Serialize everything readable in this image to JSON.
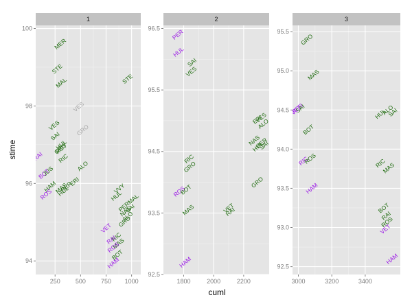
{
  "chart_data": {
    "type": "scatter",
    "marker": "text-labels",
    "xlabel": "cuml",
    "ylabel": "stime",
    "colors": {
      "green": "#1e6b0e",
      "purple": "#9b19e6",
      "grey": "#a6a6a6",
      "panel_bg": "#e5e5e5",
      "grid": "#ffffff",
      "strip_bg": "#c2c2c2",
      "tick_text": "#7f7f7f"
    },
    "panels": [
      {
        "strip": "1",
        "xlim": [
          60,
          1090
        ],
        "ylim": [
          93.65,
          100.08
        ],
        "xticks": [
          250,
          500,
          750,
          1000
        ],
        "xtick_labels": [
          "250",
          "500",
          "750",
          "1000"
        ],
        "yticks": [
          94,
          96,
          98,
          100
        ],
        "ytick_labels": [
          "94",
          "96",
          "98",
          "100"
        ],
        "points": [
          {
            "label": "MER",
            "x": 300,
            "y": 99.6,
            "color": "green"
          },
          {
            "label": "STE",
            "x": 270,
            "y": 98.96,
            "color": "green"
          },
          {
            "label": "MAL",
            "x": 310,
            "y": 98.6,
            "color": "green"
          },
          {
            "label": "STE",
            "x": 960,
            "y": 98.7,
            "color": "green"
          },
          {
            "label": "VES",
            "x": 480,
            "y": 97.98,
            "color": "grey"
          },
          {
            "label": "VES",
            "x": 240,
            "y": 97.5,
            "color": "green"
          },
          {
            "label": "GRO",
            "x": 520,
            "y": 97.38,
            "color": "grey"
          },
          {
            "label": "SAI",
            "x": 250,
            "y": 97.22,
            "color": "green"
          },
          {
            "label": "HUL",
            "x": 310,
            "y": 97.0,
            "color": "green"
          },
          {
            "label": "GRO",
            "x": 300,
            "y": 96.9,
            "color": "green"
          },
          {
            "label": "ROY",
            "x": 310,
            "y": 96.9,
            "color": "green"
          },
          {
            "label": "RAI",
            "x": 80,
            "y": 96.7,
            "color": "purple"
          },
          {
            "label": "RIC",
            "x": 330,
            "y": 96.65,
            "color": "green"
          },
          {
            "label": "ALO",
            "x": 520,
            "y": 96.45,
            "color": "green"
          },
          {
            "label": "BOT",
            "x": 140,
            "y": 96.25,
            "color": "purple"
          },
          {
            "label": "JUS",
            "x": 180,
            "y": 96.32,
            "color": "green"
          },
          {
            "label": "HAM",
            "x": 200,
            "y": 95.92,
            "color": "green"
          },
          {
            "label": "ROS",
            "x": 160,
            "y": 95.72,
            "color": "purple"
          },
          {
            "label": "MAS",
            "x": 310,
            "y": 95.88,
            "color": "green"
          },
          {
            "label": "HUL",
            "x": 330,
            "y": 95.8,
            "color": "green"
          },
          {
            "label": "PER",
            "x": 360,
            "y": 95.92,
            "color": "green"
          },
          {
            "label": "ERI",
            "x": 440,
            "y": 96.05,
            "color": "green"
          },
          {
            "label": "VVY",
            "x": 880,
            "y": 95.87,
            "color": "green"
          },
          {
            "label": "HUL",
            "x": 850,
            "y": 95.68,
            "color": "green"
          },
          {
            "label": "PERMAL",
            "x": 970,
            "y": 95.5,
            "color": "green"
          },
          {
            "label": "SAI",
            "x": 985,
            "y": 95.36,
            "color": "green"
          },
          {
            "label": "NAS",
            "x": 940,
            "y": 95.28,
            "color": "green"
          },
          {
            "label": "ALO",
            "x": 960,
            "y": 95.15,
            "color": "green"
          },
          {
            "label": "GRO",
            "x": 930,
            "y": 95.02,
            "color": "green"
          },
          {
            "label": "VET",
            "x": 750,
            "y": 94.85,
            "color": "purple"
          },
          {
            "label": "RIC",
            "x": 850,
            "y": 94.62,
            "color": "green"
          },
          {
            "label": "MAS",
            "x": 870,
            "y": 94.45,
            "color": "green"
          },
          {
            "label": "RAI",
            "x": 800,
            "y": 94.55,
            "color": "purple"
          },
          {
            "label": "ROS",
            "x": 820,
            "y": 94.35,
            "color": "purple"
          },
          {
            "label": "BOT",
            "x": 860,
            "y": 94.16,
            "color": "green"
          },
          {
            "label": "HAM",
            "x": 820,
            "y": 93.95,
            "color": "purple"
          }
        ]
      },
      {
        "strip": "2",
        "xlim": [
          1665,
          2370
        ],
        "ylim": [
          92.5,
          96.55
        ],
        "xticks": [
          1800,
          2000,
          2200
        ],
        "xtick_labels": [
          "1800",
          "2000",
          "2200"
        ],
        "yticks": [
          92.5,
          93.5,
          94.5,
          95.5,
          96.5
        ],
        "ytick_labels": [
          "92.5",
          "93.5",
          "94.5",
          "95.5",
          "96.5"
        ],
        "points": [
          {
            "label": "PER",
            "x": 1760,
            "y": 96.4,
            "color": "purple"
          },
          {
            "label": "HUL",
            "x": 1765,
            "y": 96.12,
            "color": "purple"
          },
          {
            "label": "SAI",
            "x": 1855,
            "y": 95.95,
            "color": "green"
          },
          {
            "label": "VES",
            "x": 1850,
            "y": 95.8,
            "color": "green"
          },
          {
            "label": "ERI",
            "x": 2290,
            "y": 95.02,
            "color": "green"
          },
          {
            "label": "VES",
            "x": 2315,
            "y": 95.05,
            "color": "green"
          },
          {
            "label": "ALO",
            "x": 2330,
            "y": 94.95,
            "color": "green"
          },
          {
            "label": "NAS",
            "x": 2270,
            "y": 94.68,
            "color": "green"
          },
          {
            "label": "PER",
            "x": 2320,
            "y": 94.64,
            "color": "green"
          },
          {
            "label": "HUL",
            "x": 2295,
            "y": 94.58,
            "color": "green"
          },
          {
            "label": "SAI",
            "x": 2335,
            "y": 94.6,
            "color": "green"
          },
          {
            "label": "RIC",
            "x": 1835,
            "y": 94.38,
            "color": "green"
          },
          {
            "label": "GRO",
            "x": 1840,
            "y": 94.25,
            "color": "green"
          },
          {
            "label": "GRO",
            "x": 2290,
            "y": 94.0,
            "color": "green"
          },
          {
            "label": "ROS",
            "x": 1770,
            "y": 93.85,
            "color": "purple"
          },
          {
            "label": "BOT",
            "x": 1815,
            "y": 93.88,
            "color": "green"
          },
          {
            "label": "MAS",
            "x": 1830,
            "y": 93.55,
            "color": "green"
          },
          {
            "label": "VET",
            "x": 2100,
            "y": 93.58,
            "color": "green"
          },
          {
            "label": "RAI",
            "x": 2110,
            "y": 93.52,
            "color": "green"
          },
          {
            "label": "HAM",
            "x": 1810,
            "y": 92.7,
            "color": "purple"
          }
        ]
      },
      {
        "strip": "3",
        "xlim": [
          2965,
          3610
        ],
        "ylim": [
          92.4,
          95.58
        ],
        "xticks": [
          3000,
          3200,
          3400
        ],
        "xtick_labels": [
          "3000",
          "3200",
          "3400"
        ],
        "yticks": [
          92.5,
          93.0,
          93.5,
          94.0,
          94.5,
          95.0,
          95.5
        ],
        "ytick_labels": [
          "92.5",
          "93.0",
          "93.5",
          "94.0",
          "94.5",
          "95.0",
          "95.5"
        ],
        "points": [
          {
            "label": "GRO",
            "x": 3050,
            "y": 95.4,
            "color": "green"
          },
          {
            "label": "MAS",
            "x": 3090,
            "y": 94.95,
            "color": "green"
          },
          {
            "label": "VET",
            "x": 2985,
            "y": 94.5,
            "color": "purple"
          },
          {
            "label": "PER",
            "x": 2995,
            "y": 94.52,
            "color": "purple"
          },
          {
            "label": "SAI",
            "x": 3010,
            "y": 94.52,
            "color": "green"
          },
          {
            "label": "HUL",
            "x": 3490,
            "y": 94.45,
            "color": "green"
          },
          {
            "label": "ALO",
            "x": 3535,
            "y": 94.5,
            "color": "green"
          },
          {
            "label": "SAI",
            "x": 3565,
            "y": 94.47,
            "color": "green"
          },
          {
            "label": "BOT",
            "x": 3060,
            "y": 94.25,
            "color": "green"
          },
          {
            "label": "RIC",
            "x": 3030,
            "y": 93.85,
            "color": "purple"
          },
          {
            "label": "ROS",
            "x": 3070,
            "y": 93.88,
            "color": "green"
          },
          {
            "label": "RIC",
            "x": 3490,
            "y": 93.82,
            "color": "green"
          },
          {
            "label": "MAS",
            "x": 3540,
            "y": 93.76,
            "color": "green"
          },
          {
            "label": "HAM",
            "x": 3080,
            "y": 93.5,
            "color": "purple"
          },
          {
            "label": "BOT",
            "x": 3510,
            "y": 93.25,
            "color": "green"
          },
          {
            "label": "RAI",
            "x": 3525,
            "y": 93.15,
            "color": "green"
          },
          {
            "label": "ROS",
            "x": 3530,
            "y": 93.07,
            "color": "green"
          },
          {
            "label": "VET",
            "x": 3520,
            "y": 92.98,
            "color": "purple"
          },
          {
            "label": "HAM",
            "x": 3560,
            "y": 92.6,
            "color": "purple"
          }
        ]
      }
    ]
  }
}
